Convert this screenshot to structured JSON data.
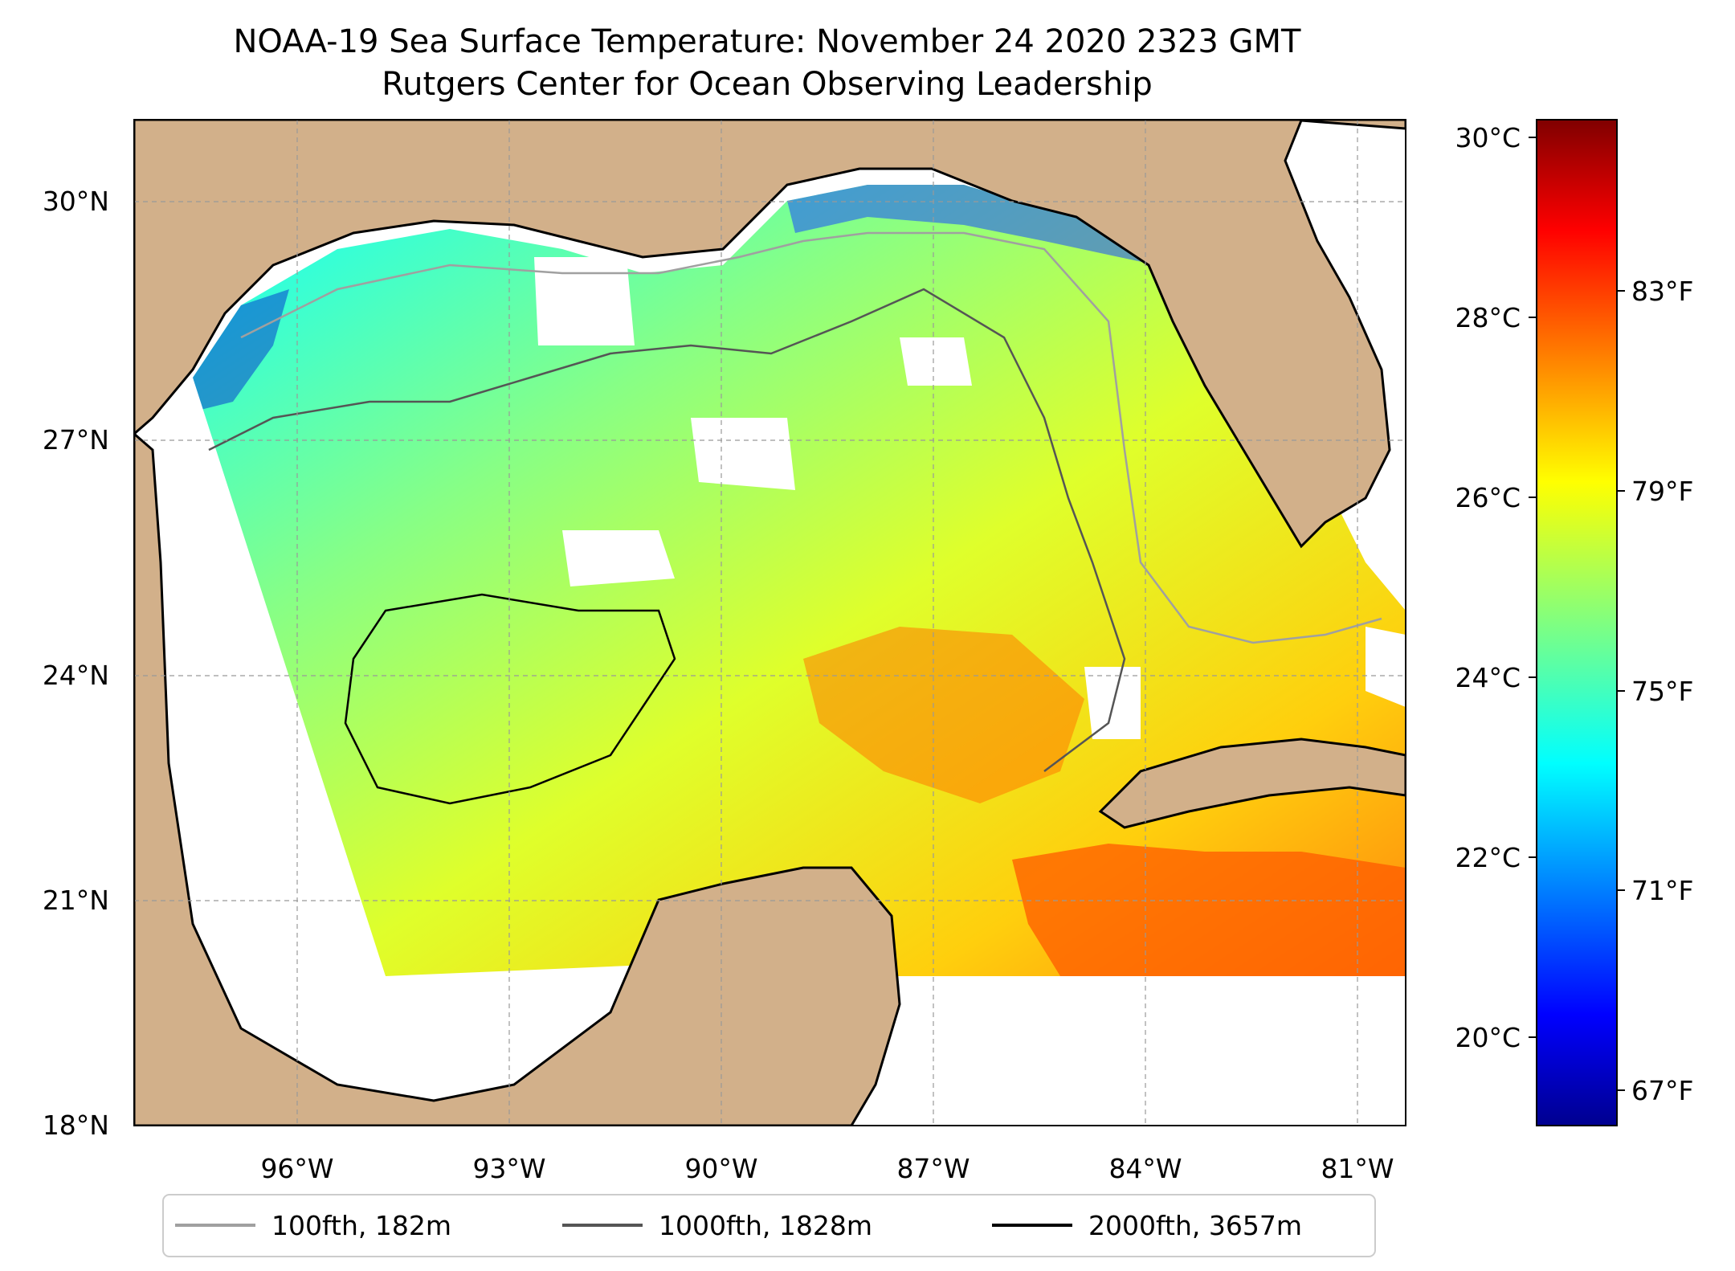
{
  "title": {
    "line1": "NOAA-19 Sea Surface Temperature: November 24 2020 2323 GMT",
    "line2": "Rutgers Center for Ocean Observing Leadership"
  },
  "map": {
    "lon_range": [
      -98.0,
      -80.0
    ],
    "lat_range": [
      18.0,
      31.0
    ],
    "grid": true,
    "land_color": "#d2b08a",
    "data_south_edge_lat": 20.0,
    "lat_ticks": [
      "18°N",
      "21°N",
      "24°N",
      "27°N",
      "30°N"
    ],
    "lon_ticks": [
      "96°W",
      "93°W",
      "90°W",
      "87°W",
      "84°W",
      "81°W"
    ]
  },
  "colorbar": {
    "colormap": "jet",
    "celsius_ticks": [
      "20°C",
      "22°C",
      "24°C",
      "26°C",
      "28°C",
      "30°C"
    ],
    "fahrenheit_ticks": [
      "67°F",
      "71°F",
      "75°F",
      "79°F",
      "83°F"
    ],
    "range_c": [
      19.0,
      30.2
    ]
  },
  "legend": {
    "position": "bottom",
    "items": [
      {
        "label": "100fth, 182m",
        "color": "#a0a0a0"
      },
      {
        "label": "1000fth, 1828m",
        "color": "#555555"
      },
      {
        "label": "2000fth, 3657m",
        "color": "#000000"
      }
    ]
  }
}
